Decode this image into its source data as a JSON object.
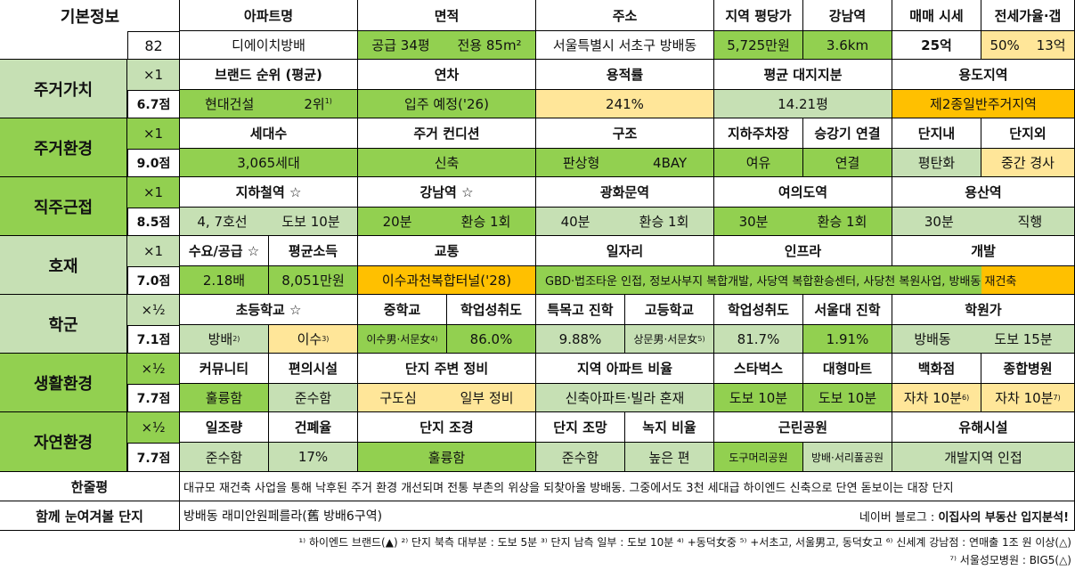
{
  "basic": {
    "label": "기본정보",
    "score": "82",
    "headers": [
      "아파트명",
      "면적",
      "주소",
      "지역 평당가",
      "강남역",
      "매매 시세",
      "전세가율·갭"
    ],
    "apt_name": "디에이치방배",
    "area_supply": "공급 34평",
    "area_exclusive": "전용 85m²",
    "address": "서울특별시 서초구 방배동",
    "price_per_pyeong": "5,725만원",
    "gangnam_distance": "3.6km",
    "sale_price": "25억",
    "jeonse_rate": "50%",
    "gap": "13억"
  },
  "residential_value": {
    "label": "주거가치",
    "weight": "×1",
    "score": "6.7점",
    "headers": [
      "브랜드 순위 (평균)",
      "연차",
      "용적률",
      "평균 대지지분",
      "용도지역"
    ],
    "brand": "현대건설",
    "rank": "2위",
    "rank_sup": "1)",
    "year": "입주 예정('26)",
    "far": "241%",
    "land_share": "14.21평",
    "zone": "제2종일반주거지역"
  },
  "residential_env": {
    "label": "주거환경",
    "weight": "×1",
    "score": "9.0점",
    "headers": [
      "세대수",
      "주거 컨디션",
      "구조",
      "지하주차장",
      "승강기 연결",
      "단지내",
      "단지외"
    ],
    "households": "3,065세대",
    "condition": "신축",
    "structure_type": "판상형",
    "bay": "4BAY",
    "parking": "여유",
    "elevator": "연결",
    "inside": "평탄화",
    "outside": "중간 경사"
  },
  "commute": {
    "label": "직주근접",
    "weight": "×1",
    "score": "8.5점",
    "headers": [
      "지하철역 ☆",
      "강남역 ☆",
      "광화문역",
      "여의도역",
      "용산역"
    ],
    "subway_lines": "4, 7호선",
    "subway_walk": "도보 10분",
    "gangnam_time": "20분",
    "gangnam_transfer": "환승 1회",
    "gwanghwamun_time": "40분",
    "gwanghwamun_transfer": "환승 1회",
    "yeouido_time": "30분",
    "yeouido_transfer": "환승 1회",
    "yongsan_time": "30분",
    "yongsan_transfer": "직행"
  },
  "development": {
    "label": "호재",
    "weight": "×1",
    "score": "7.0점",
    "headers": [
      "수요/공급 ☆",
      "평균소득",
      "교통",
      "일자리",
      "인프라",
      "개발"
    ],
    "supply_demand": "2.18배",
    "income": "8,051만원",
    "traffic": "이수과천복합터널('28)",
    "long_text": "GBD·법조타운 인접, 정보사부지 복합개발, 사당역 복합환승센터, 사당천 복원사업, 방배동 재건축"
  },
  "school": {
    "label": "학군",
    "weight": "×½",
    "score": "7.1점",
    "headers": [
      "초등학교 ☆",
      "중학교",
      "학업성취도",
      "특목고 진학",
      "고등학교",
      "학업성취도",
      "서울대 진학",
      "학원가"
    ],
    "elem1": "방배",
    "elem1_sup": "2)",
    "elem2": "이수",
    "elem2_sup": "3)",
    "middle": "이수男·서문女",
    "middle_sup": "4)",
    "middle_score": "86.0%",
    "special_hs": "9.88%",
    "high": "상문男·서문女",
    "high_sup": "5)",
    "high_score": "81.7%",
    "snu": "1.91%",
    "academy_area": "방배동",
    "academy_walk": "도보 15분"
  },
  "living_env": {
    "label": "생활환경",
    "weight": "×½",
    "score": "7.7점",
    "headers": [
      "커뮤니티",
      "편의시설",
      "단지 주변 정비",
      "지역 아파트 비율",
      "스타벅스",
      "대형마트",
      "백화점",
      "종합병원"
    ],
    "community": "훌륭함",
    "convenience": "준수함",
    "area_status": "구도심",
    "maintenance": "일부 정비",
    "apt_ratio": "신축아파트·빌라 혼재",
    "starbucks": "도보 10분",
    "mart": "도보 10분",
    "dept_store": "자차 10분",
    "dept_sup": "6)",
    "hospital": "자차 10분",
    "hospital_sup": "7)"
  },
  "nature_env": {
    "label": "자연환경",
    "weight": "×½",
    "score": "7.7점",
    "headers": [
      "일조량",
      "건폐율",
      "단지 조경",
      "단지 조망",
      "녹지 비율",
      "근린공원",
      "유해시설"
    ],
    "sunlight": "준수함",
    "bcr": "17%",
    "landscape": "훌륭함",
    "view": "준수함",
    "green_ratio": "높은 편",
    "park1": "도구머리공원",
    "park2": "방배·서리풀공원",
    "hazard": "개발지역 인접"
  },
  "summary": {
    "label": "한줄평",
    "text": "대규모 재건축 사업을 통해 낙후된 주거 환경 개선되며 전통 부촌의 위상을 되찾아올 방배동. 그중에서도 3천 세대급 하이엔드 신축으로 단연 돋보이는 대장 단지"
  },
  "compare": {
    "label": "함께 눈여겨볼 단지",
    "text": "방배동 래미안원페를라(舊 방배6구역)",
    "blog_prefix": "네이버 블로그 : ",
    "blog_name": "이집사의 부동산 입지분석!"
  },
  "footnotes": {
    "line1": "¹⁾ 하이엔드 브랜드(▲) ²⁾ 단지 북측 대부분 : 도보 5분 ³⁾ 단지 남측 일부 : 도보 10분 ⁴⁾ +동덕女중 ⁵⁾ +서초고, 서울男고, 동덕女고 ⁶⁾ 신세계 강남점 : 연매출 1조 원 이상(△)",
    "line2": "⁷⁾ 서울성모병원 : BIG5(△)"
  },
  "colors": {
    "green": "#92d050",
    "light_green": "#c6e0b4",
    "yellow": "#ffe699",
    "orange": "#ffc000"
  }
}
